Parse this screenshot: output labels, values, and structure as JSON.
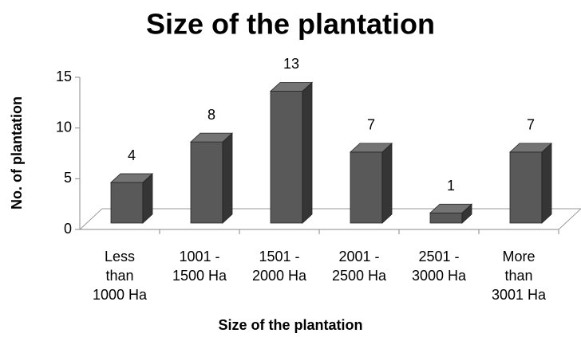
{
  "chart_data": {
    "type": "bar3d",
    "title": "Size of the plantation",
    "x_label": "Size of the plantation",
    "y_label": "No. of plantation",
    "categories": [
      "Less\nthan\n1000 Ha",
      "1001 -\n1500 Ha",
      "1501 -\n2000 Ha",
      "2001 -\n2500 Ha",
      "2501 -\n3000 Ha",
      "More\nthan\n3001 Ha"
    ],
    "values": [
      4,
      8,
      13,
      7,
      1,
      7
    ],
    "color": "#595959",
    "ylim": [
      0,
      15
    ],
    "yticks": [
      0,
      5,
      10,
      15
    ]
  }
}
